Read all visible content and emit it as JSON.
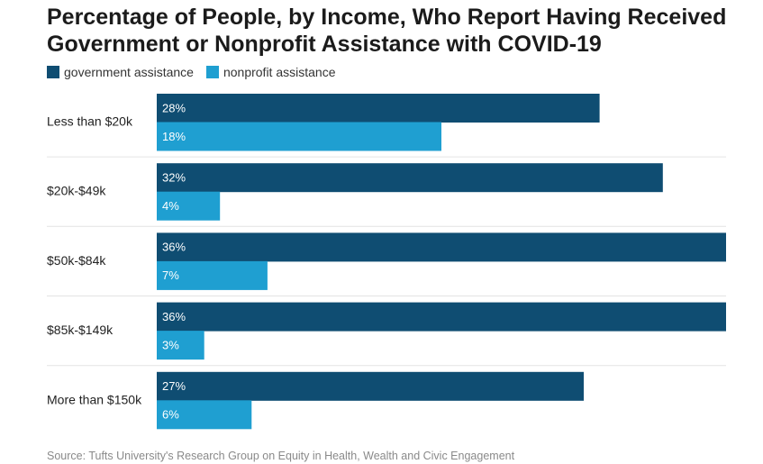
{
  "title": "Percentage of People, by Income, Who Report Having Received Government or Nonprofit Assistance with COVID-19",
  "source": "Source: Tufts University's Research Group on Equity in Health, Wealth and Civic Engagement",
  "colors": {
    "government": "#0f4d72",
    "nonprofit": "#1f9fd1",
    "separator": "#e4e4e4"
  },
  "chart_data": {
    "type": "bar",
    "orientation": "horizontal",
    "title": "Percentage of People, by Income, Who Report Having Received Government or Nonprofit Assistance with COVID-19",
    "categories": [
      "Less than $20k",
      "$20k-$49k",
      "$50k-$84k",
      "$85k-$149k",
      "More than $150k"
    ],
    "series": [
      {
        "name": "government assistance",
        "values": [
          28,
          32,
          36,
          36,
          27
        ],
        "labels": [
          "28%",
          "32%",
          "36%",
          "36%",
          "27%"
        ]
      },
      {
        "name": "nonprofit assistance",
        "values": [
          18,
          4,
          7,
          3,
          6
        ],
        "labels": [
          "18%",
          "4%",
          "7%",
          "3%",
          "6%"
        ]
      }
    ],
    "xlim": [
      0,
      36
    ],
    "legend": "top-left",
    "grid": false
  }
}
